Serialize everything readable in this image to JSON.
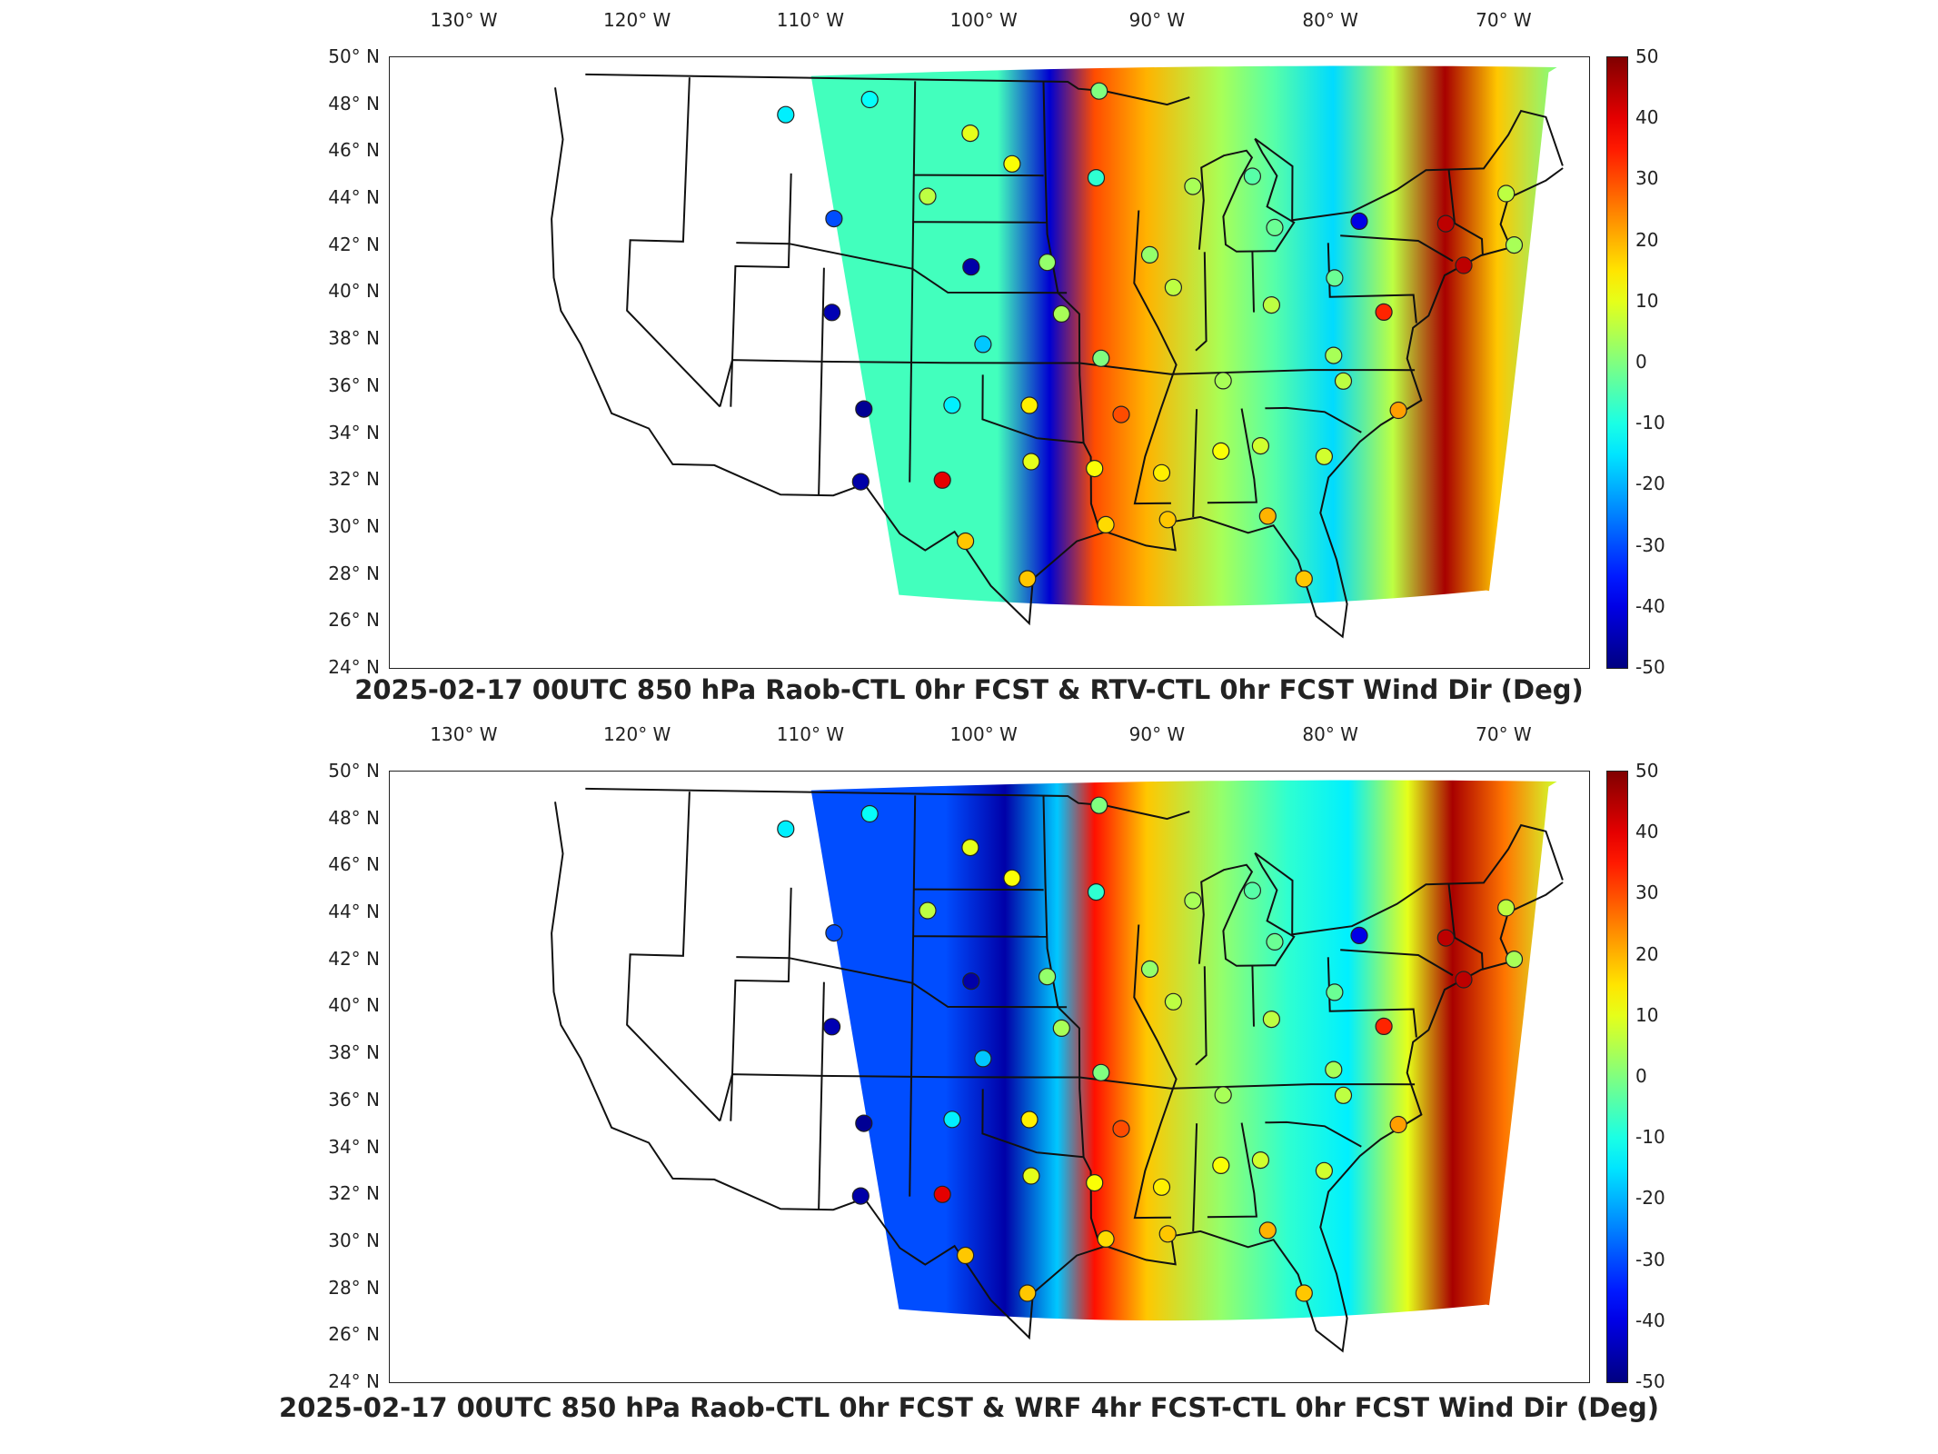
{
  "colorbar": {
    "ticks": [
      "50",
      "40",
      "30",
      "20",
      "10",
      "0",
      "-10",
      "-20",
      "-30",
      "-40",
      "-50"
    ],
    "range": [
      -50,
      50
    ],
    "colormap": "jet"
  },
  "axes": {
    "lon_labels": [
      "130° W",
      "120° W",
      "110° W",
      "100° W",
      "90° W",
      "80° W",
      "70° W"
    ],
    "lat_labels": [
      "50° N",
      "48° N",
      "46° N",
      "44° N",
      "42° N",
      "40° N",
      "38° N",
      "36° N",
      "34° N",
      "32° N",
      "30° N",
      "28° N",
      "26° N",
      "24° N"
    ]
  },
  "panels": [
    {
      "title": "2025-02-17 00UTC 850 hPa Raob-CTL 0hr FCST & RTV-CTL 0hr FCST Wind Dir (Deg)"
    },
    {
      "title": "2025-02-17 00UTC 850 hPa Raob-CTL 0hr FCST & WRF 4hr FCST-CTL 0hr FCST Wind Dir (Deg)"
    }
  ],
  "stations": [
    {
      "id": "GGW",
      "value": -12
    },
    {
      "id": "TFX",
      "value": -14
    },
    {
      "id": "RIW",
      "value": -30
    },
    {
      "id": "GJT",
      "value": -45
    },
    {
      "id": "ABQ",
      "value": -48
    },
    {
      "id": "EPZ",
      "value": -46
    },
    {
      "id": "UNR",
      "value": 6
    },
    {
      "id": "BIS",
      "value": 10
    },
    {
      "id": "ABR",
      "value": 12
    },
    {
      "id": "LBF",
      "value": -46
    },
    {
      "id": "DDC",
      "value": -18
    },
    {
      "id": "AMA",
      "value": -14
    },
    {
      "id": "MAF",
      "value": 40
    },
    {
      "id": "OUN",
      "value": 14
    },
    {
      "id": "TOP",
      "value": 4
    },
    {
      "id": "OAX",
      "value": 2
    },
    {
      "id": "INL",
      "value": 0
    },
    {
      "id": "MPX",
      "value": -8
    },
    {
      "id": "GRB",
      "value": 4
    },
    {
      "id": "DVN",
      "value": 2
    },
    {
      "id": "ILX",
      "value": 6
    },
    {
      "id": "SGF",
      "value": 0
    },
    {
      "id": "LZK",
      "value": 30
    },
    {
      "id": "FWD",
      "value": 10
    },
    {
      "id": "SHV",
      "value": 12
    },
    {
      "id": "DRT",
      "value": 18
    },
    {
      "id": "CRP",
      "value": 18
    },
    {
      "id": "LCH",
      "value": 16
    },
    {
      "id": "JAN",
      "value": 14
    },
    {
      "id": "BMX",
      "value": 12
    },
    {
      "id": "LIX",
      "value": 18
    },
    {
      "id": "FFC",
      "value": 8
    },
    {
      "id": "TLH",
      "value": 20
    },
    {
      "id": "TBW",
      "value": 18
    },
    {
      "id": "BNA",
      "value": 4
    },
    {
      "id": "ILN",
      "value": 6
    },
    {
      "id": "APX",
      "value": -4
    },
    {
      "id": "DTX",
      "value": -2
    },
    {
      "id": "BUF",
      "value": -40
    },
    {
      "id": "PIT",
      "value": -2
    },
    {
      "id": "RNK",
      "value": 4
    },
    {
      "id": "GSO",
      "value": 6
    },
    {
      "id": "CHS",
      "value": 8
    },
    {
      "id": "MHX",
      "value": 22
    },
    {
      "id": "IAD",
      "value": 34
    },
    {
      "id": "OKX",
      "value": 44
    },
    {
      "id": "ALB",
      "value": 44
    },
    {
      "id": "CHH",
      "value": 4
    },
    {
      "id": "GYX",
      "value": 6
    }
  ]
}
